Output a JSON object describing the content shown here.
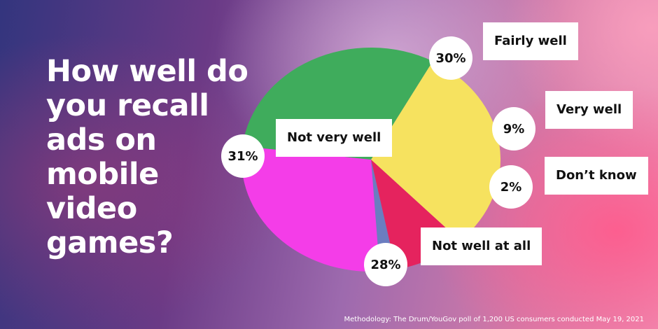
{
  "title": "How well do you recall ads on mobile video games?",
  "methodology": "Methodology: The Drum/YouGov poll of 1,200 US consumers conducted May 19, 2021",
  "chart_data": {
    "type": "pie",
    "title": "How well do you recall ads on mobile video games?",
    "slices": [
      {
        "label": "Fairly well",
        "value": 30,
        "value_label": "30%",
        "color": "#f6e25f"
      },
      {
        "label": "Very well",
        "value": 9,
        "value_label": "9%",
        "color": "#e5235e"
      },
      {
        "label": "Don’t know",
        "value": 2,
        "value_label": "2%",
        "color": "#6b7dc0"
      },
      {
        "label": "Not well at all",
        "value": 28,
        "value_label": "28%",
        "color": "#f43de8"
      },
      {
        "label": "Not very well",
        "value": 31,
        "value_label": "31%",
        "color": "#3fac5c"
      }
    ]
  }
}
